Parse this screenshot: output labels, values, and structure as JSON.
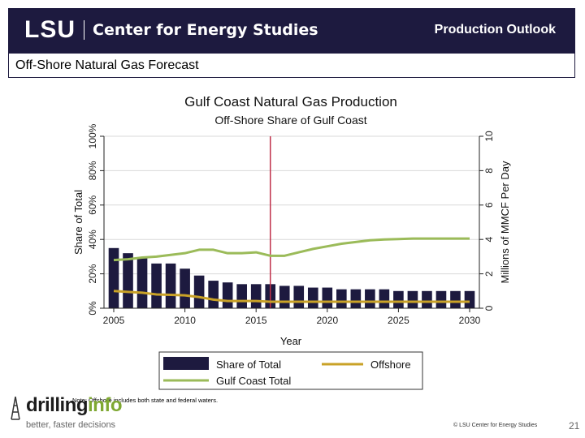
{
  "header": {
    "logo_mark": "LSU",
    "logo_name": "Center for Energy Studies",
    "section": "Production Outlook"
  },
  "subtitle_bar": "Off-Shore Natural Gas Forecast",
  "footer": {
    "brand_part1": "drilling",
    "brand_part2": "info",
    "brand_tagline": "better, faster decisions",
    "credit": "© LSU Center for Energy Studies",
    "page_number": "21"
  },
  "colors": {
    "header_bg": "#1d1a3f",
    "share_bar": "#1d1a3f",
    "offshore_line": "#c9a227",
    "gulf_total_line": "#9bbb59",
    "vline": "#c0304a"
  },
  "chart_data": {
    "type": "bar+line",
    "title": "Gulf Coast Natural Gas Production",
    "subtitle": "Off-Shore Share of Gulf Coast",
    "xlabel": "Year",
    "ylabel_left": "Share of Total",
    "ylabel_right": "Millions of MMCF Per Day",
    "x_ticks": [
      2005,
      2010,
      2015,
      2020,
      2025,
      2030
    ],
    "y_left_ticks": [
      "0%",
      "20%",
      "40%",
      "60%",
      "80%",
      "100%"
    ],
    "y_left_range": [
      0,
      100
    ],
    "y_right_ticks": [
      0,
      2,
      4,
      6,
      8,
      10
    ],
    "y_right_range": [
      0,
      10
    ],
    "vline_year": 2016,
    "note": "Note: Offshore includes both state and federal waters.",
    "years": [
      2005,
      2006,
      2007,
      2008,
      2009,
      2010,
      2011,
      2012,
      2013,
      2014,
      2015,
      2016,
      2017,
      2018,
      2019,
      2020,
      2021,
      2022,
      2023,
      2024,
      2025,
      2026,
      2027,
      2028,
      2029,
      2030
    ],
    "series": [
      {
        "name": "Share of Total",
        "type": "bar",
        "axis": "left",
        "values": [
          35,
          32,
          29,
          26,
          26,
          23,
          19,
          16,
          15,
          14,
          14,
          14,
          13,
          13,
          12,
          12,
          11,
          11,
          11,
          11,
          10,
          10,
          10,
          10,
          10,
          10
        ]
      },
      {
        "name": "Offshore",
        "type": "line",
        "axis": "right",
        "values": [
          1.0,
          0.95,
          0.9,
          0.8,
          0.78,
          0.75,
          0.65,
          0.5,
          0.42,
          0.42,
          0.42,
          0.38,
          0.38,
          0.38,
          0.38,
          0.38,
          0.38,
          0.38,
          0.38,
          0.38,
          0.38,
          0.38,
          0.38,
          0.38,
          0.38,
          0.38
        ]
      },
      {
        "name": "Gulf Coast Total",
        "type": "line",
        "axis": "right",
        "values": [
          2.8,
          2.85,
          2.95,
          3.0,
          3.1,
          3.2,
          3.4,
          3.4,
          3.2,
          3.2,
          3.25,
          3.05,
          3.05,
          3.25,
          3.45,
          3.6,
          3.75,
          3.85,
          3.95,
          4.0,
          4.02,
          4.05,
          4.05,
          4.05,
          4.05,
          4.05
        ]
      }
    ],
    "legend_position": "bottom"
  }
}
